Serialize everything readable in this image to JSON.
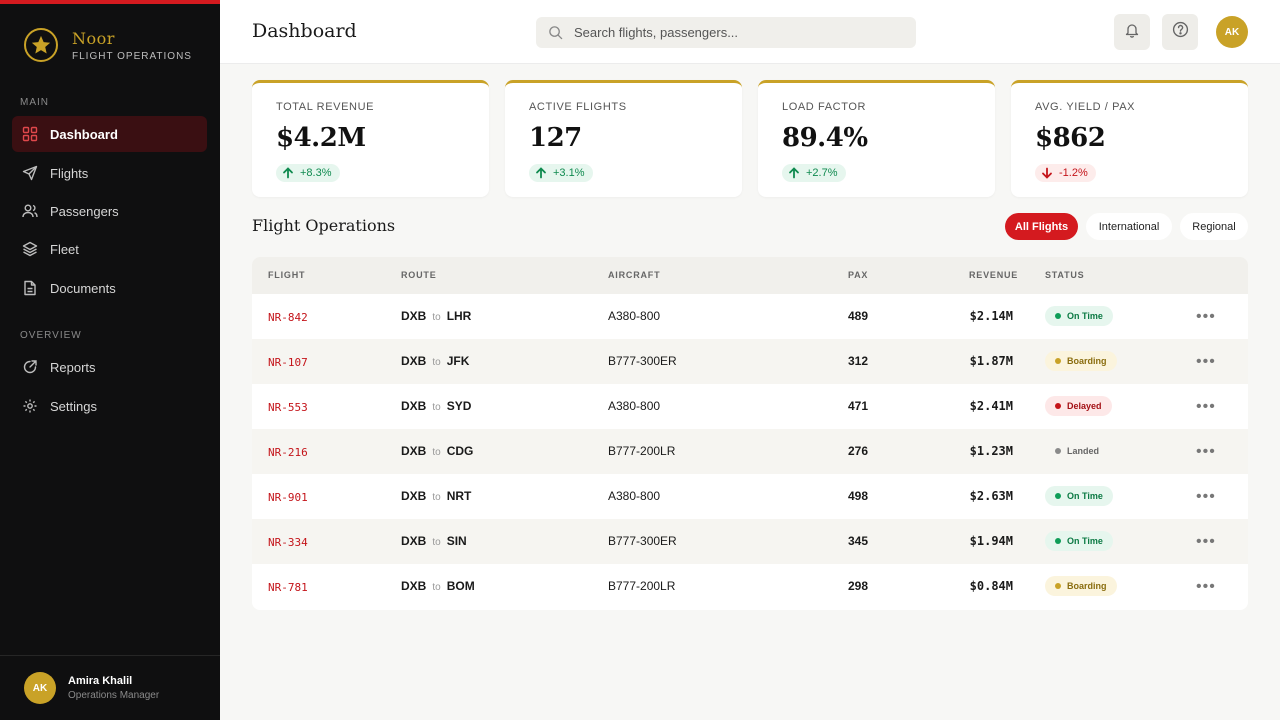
{
  "brand": {
    "name": "Noor",
    "subtitle": "FLIGHT OPERATIONS"
  },
  "sidebar": {
    "sections": [
      "MAIN",
      "OVERVIEW"
    ],
    "items": [
      {
        "label": "Dashboard",
        "icon": "grid-icon"
      },
      {
        "label": "Flights",
        "icon": "send-icon"
      },
      {
        "label": "Passengers",
        "icon": "users-icon"
      },
      {
        "label": "Fleet",
        "icon": "layers-icon"
      },
      {
        "label": "Documents",
        "icon": "document-icon"
      },
      {
        "label": "Reports",
        "icon": "reports-icon"
      },
      {
        "label": "Settings",
        "icon": "settings-icon"
      }
    ],
    "user": {
      "initials": "AK",
      "name": "Amira Khalil",
      "role": "Operations Manager"
    }
  },
  "header": {
    "title": "Dashboard",
    "search_placeholder": "Search flights, passengers...",
    "avatar_initials": "AK"
  },
  "kpis": [
    {
      "label": "TOTAL REVENUE",
      "value": "$4.2M",
      "delta": "+8.3%",
      "trend": "up"
    },
    {
      "label": "ACTIVE FLIGHTS",
      "value": "127",
      "delta": "+3.1%",
      "trend": "up"
    },
    {
      "label": "LOAD FACTOR",
      "value": "89.4%",
      "delta": "+2.7%",
      "trend": "up"
    },
    {
      "label": "AVG. YIELD / PAX",
      "value": "$862",
      "delta": "-1.2%",
      "trend": "down"
    }
  ],
  "operations": {
    "title": "Flight Operations",
    "filters": [
      "All Flights",
      "International",
      "Regional"
    ],
    "columns": [
      "FLIGHT",
      "ROUTE",
      "AIRCRAFT",
      "PAX",
      "REVENUE",
      "STATUS"
    ],
    "route_connector": "to",
    "more_label": "•••",
    "rows": [
      {
        "flight": "NR-842",
        "from": "DXB",
        "to": "LHR",
        "aircraft": "A380-800",
        "pax": "489",
        "revenue": "$2.14M",
        "status": "On Time"
      },
      {
        "flight": "NR-107",
        "from": "DXB",
        "to": "JFK",
        "aircraft": "B777-300ER",
        "pax": "312",
        "revenue": "$1.87M",
        "status": "Boarding"
      },
      {
        "flight": "NR-553",
        "from": "DXB",
        "to": "SYD",
        "aircraft": "A380-800",
        "pax": "471",
        "revenue": "$2.41M",
        "status": "Delayed"
      },
      {
        "flight": "NR-216",
        "from": "DXB",
        "to": "CDG",
        "aircraft": "B777-200LR",
        "pax": "276",
        "revenue": "$1.23M",
        "status": "Landed"
      },
      {
        "flight": "NR-901",
        "from": "DXB",
        "to": "NRT",
        "aircraft": "A380-800",
        "pax": "498",
        "revenue": "$2.63M",
        "status": "On Time"
      },
      {
        "flight": "NR-334",
        "from": "DXB",
        "to": "SIN",
        "aircraft": "B777-300ER",
        "pax": "345",
        "revenue": "$1.94M",
        "status": "On Time"
      },
      {
        "flight": "NR-781",
        "from": "DXB",
        "to": "BOM",
        "aircraft": "B777-200LR",
        "pax": "298",
        "revenue": "$0.84M",
        "status": "Boarding"
      }
    ]
  },
  "colors": {
    "accent_red": "#d41a1f",
    "gold": "#c9a227",
    "sidebar_bg": "#0f0f10",
    "status_on_time": "#0f9d58",
    "status_boarding": "#c9a227",
    "status_delayed": "#c4141a",
    "status_landed": "#8a8a8a"
  }
}
